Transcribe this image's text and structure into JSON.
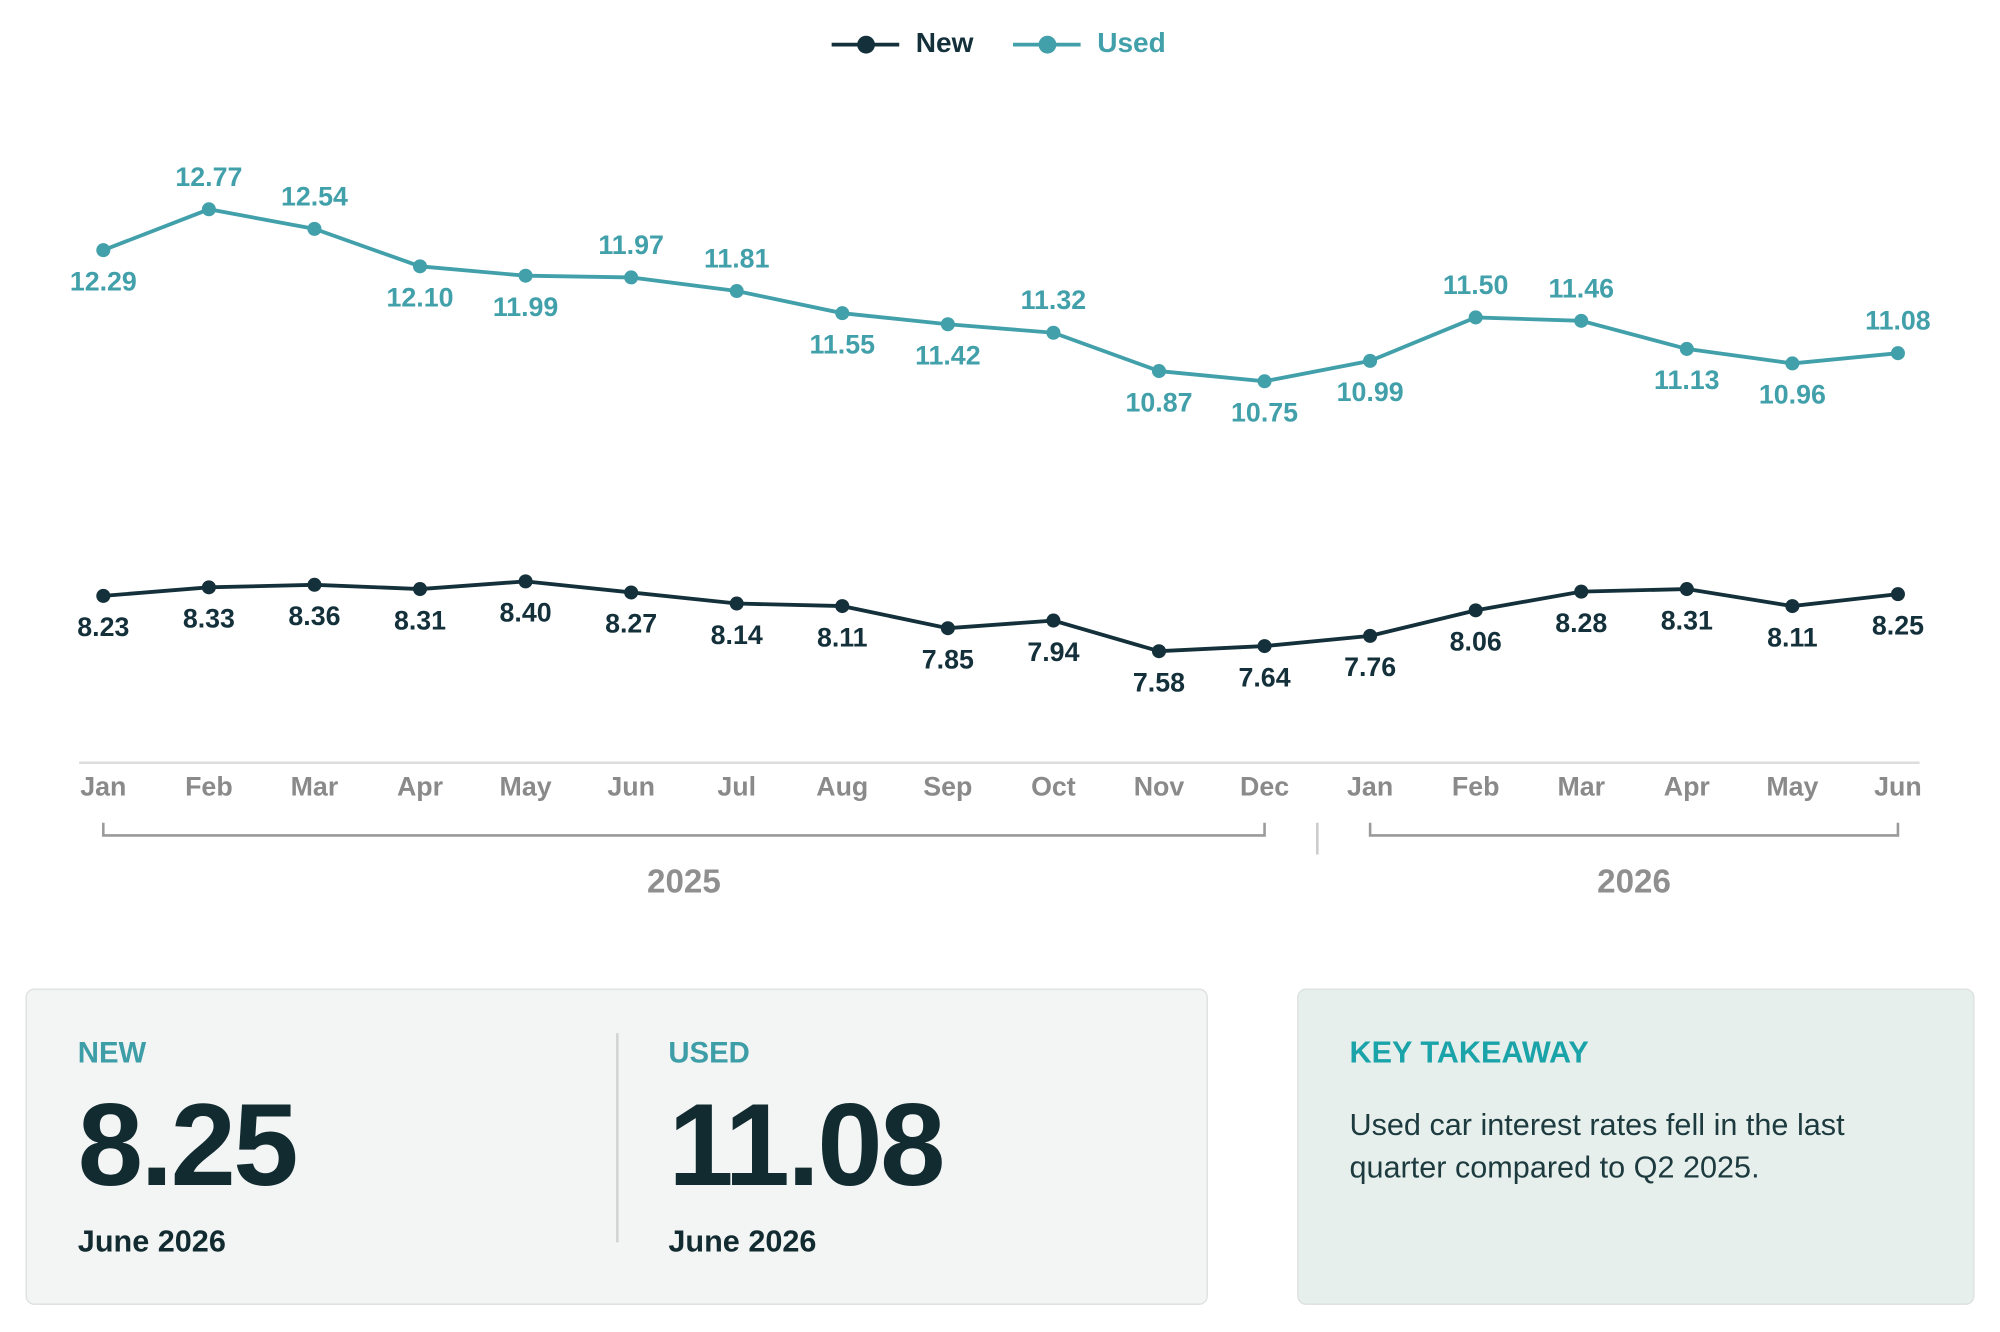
{
  "chart_data": {
    "type": "line",
    "categories": [
      "Jan",
      "Feb",
      "Mar",
      "Apr",
      "May",
      "Jun",
      "Jul",
      "Aug",
      "Sep",
      "Oct",
      "Nov",
      "Dec",
      "Jan",
      "Feb",
      "Mar",
      "Apr",
      "May",
      "Jun"
    ],
    "x_groups": [
      "2025",
      "2026"
    ],
    "series": [
      {
        "name": "New",
        "color": "#14303a",
        "values": [
          8.23,
          8.33,
          8.36,
          8.31,
          8.4,
          8.27,
          8.14,
          8.11,
          7.85,
          7.94,
          7.58,
          7.64,
          7.76,
          8.06,
          8.28,
          8.31,
          8.11,
          8.25
        ],
        "value_labels": [
          "8.23",
          "8.33",
          "8.36",
          "8.31",
          "8.40",
          "8.27",
          "8.14",
          "8.11",
          "7.85",
          "7.94",
          "7.58",
          "7.64",
          "7.76",
          "8.06",
          "8.28",
          "8.31",
          "8.11",
          "8.25"
        ]
      },
      {
        "name": "Used",
        "color": "#42a0aa",
        "values": [
          12.29,
          12.77,
          12.54,
          12.1,
          11.99,
          11.97,
          11.81,
          11.55,
          11.42,
          11.32,
          10.87,
          10.75,
          10.99,
          11.5,
          11.46,
          11.13,
          10.96,
          11.08
        ],
        "value_labels": [
          "12.29",
          "12.77",
          "12.54",
          "12.10",
          "11.99",
          "11.97",
          "11.81",
          "11.55",
          "11.42",
          "11.32",
          "10.87",
          "10.75",
          "10.99",
          "11.50",
          "11.46",
          "11.13",
          "10.96",
          "11.08"
        ]
      }
    ],
    "ylim": [
      6.27,
      13.73
    ],
    "legend": "top"
  },
  "summary": [
    {
      "label": "NEW",
      "value": "8.25",
      "date": "June 2026"
    },
    {
      "label": "USED",
      "value": "11.08",
      "date": "June 2026"
    }
  ],
  "takeaway": {
    "title": "KEY TAKEAWAY",
    "text": "Used car interest rates fell in the last quarter compared to Q2 2025."
  }
}
